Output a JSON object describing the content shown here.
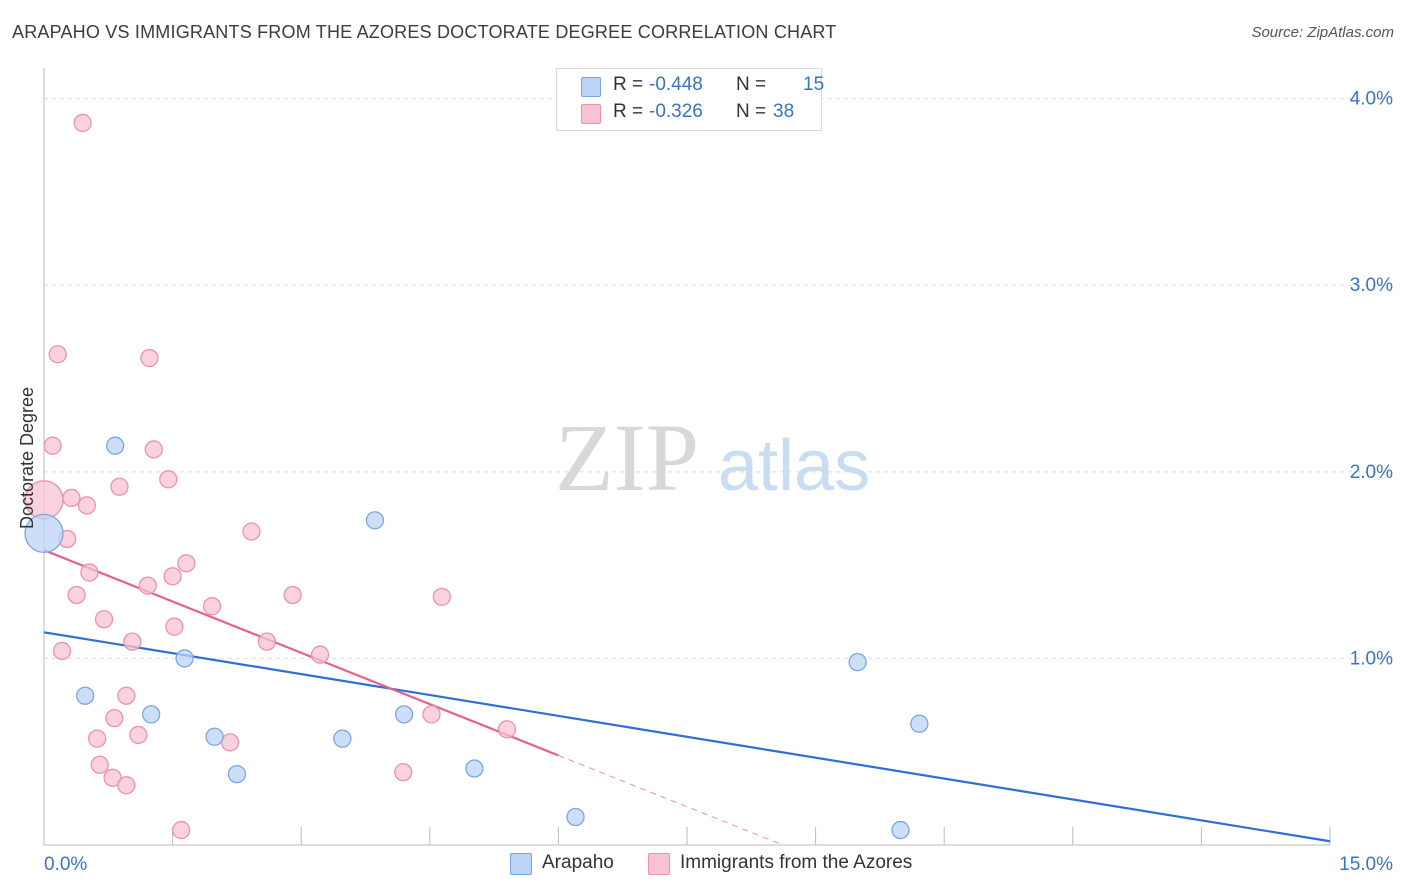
{
  "header": {
    "title": "ARAPAHO VS IMMIGRANTS FROM THE AZORES DOCTORATE DEGREE CORRELATION CHART",
    "source": "Source: ZipAtlas.com"
  },
  "legend_top": {
    "rows": [
      {
        "r_label": "R =",
        "r_value": "-0.448",
        "n_label": "N =",
        "n_value": "15"
      },
      {
        "r_label": "R =",
        "r_value": "-0.326",
        "n_label": "N =",
        "n_value": "38"
      }
    ]
  },
  "watermark": {
    "zip": "ZIP",
    "atlas": "atlas"
  },
  "colors": {
    "blue_fill": "#bcd4f5",
    "blue_stroke": "#7aa6e0",
    "blue_line": "#2f6fd3",
    "pink_fill": "#f7c3d3",
    "pink_stroke": "#ec92ae",
    "pink_line": "#e8608c",
    "axis_text": "#3a72c4",
    "grid": "#dddddd"
  },
  "chart_data": {
    "type": "scatter",
    "title": "ARAPAHO VS IMMIGRANTS FROM THE AZORES DOCTORATE DEGREE CORRELATION CHART",
    "xlabel": "",
    "ylabel": "Doctorate Degree",
    "xlim": [
      0,
      15
    ],
    "ylim": [
      0,
      4.1
    ],
    "x_tick_labels": {
      "min": "0.0%",
      "max": "15.0%"
    },
    "y_ticks": [
      1.0,
      2.0,
      3.0,
      4.0
    ],
    "y_tick_labels": [
      "1.0%",
      "2.0%",
      "3.0%",
      "4.0%"
    ],
    "grid": true,
    "series": [
      {
        "name": "Arapaho",
        "color": "#7aa6e0",
        "points": [
          {
            "x": 0.0,
            "y": 1.67,
            "size": "large"
          },
          {
            "x": 0.83,
            "y": 2.14
          },
          {
            "x": 0.48,
            "y": 0.8
          },
          {
            "x": 1.25,
            "y": 0.7
          },
          {
            "x": 1.64,
            "y": 1.0
          },
          {
            "x": 1.99,
            "y": 0.58
          },
          {
            "x": 2.25,
            "y": 0.38
          },
          {
            "x": 3.48,
            "y": 0.57
          },
          {
            "x": 3.86,
            "y": 1.74
          },
          {
            "x": 4.2,
            "y": 0.7
          },
          {
            "x": 5.02,
            "y": 0.41
          },
          {
            "x": 6.2,
            "y": 0.15
          },
          {
            "x": 9.49,
            "y": 0.98
          },
          {
            "x": 10.21,
            "y": 0.65
          },
          {
            "x": 9.99,
            "y": 0.08
          }
        ],
        "trend": {
          "x": [
            0,
            15
          ],
          "y": [
            1.14,
            0.02
          ]
        }
      },
      {
        "name": "Immigrants from the Azores",
        "color": "#ec92ae",
        "points": [
          {
            "x": 0.0,
            "y": 1.85,
            "size": "large"
          },
          {
            "x": 0.1,
            "y": 2.14
          },
          {
            "x": 0.16,
            "y": 2.63
          },
          {
            "x": 0.45,
            "y": 3.87
          },
          {
            "x": 0.32,
            "y": 1.86
          },
          {
            "x": 0.5,
            "y": 1.82
          },
          {
            "x": 0.27,
            "y": 1.64
          },
          {
            "x": 0.38,
            "y": 1.34
          },
          {
            "x": 0.53,
            "y": 1.46
          },
          {
            "x": 0.21,
            "y": 1.04
          },
          {
            "x": 0.7,
            "y": 1.21
          },
          {
            "x": 0.88,
            "y": 1.92
          },
          {
            "x": 1.03,
            "y": 1.09
          },
          {
            "x": 1.23,
            "y": 2.61
          },
          {
            "x": 1.45,
            "y": 1.96
          },
          {
            "x": 1.28,
            "y": 2.12
          },
          {
            "x": 1.21,
            "y": 1.39
          },
          {
            "x": 1.5,
            "y": 1.44
          },
          {
            "x": 1.52,
            "y": 1.17
          },
          {
            "x": 1.66,
            "y": 1.51
          },
          {
            "x": 1.96,
            "y": 1.28
          },
          {
            "x": 2.42,
            "y": 1.68
          },
          {
            "x": 2.6,
            "y": 1.09
          },
          {
            "x": 2.9,
            "y": 1.34
          },
          {
            "x": 3.22,
            "y": 1.02
          },
          {
            "x": 4.64,
            "y": 1.33
          },
          {
            "x": 0.96,
            "y": 0.8
          },
          {
            "x": 0.82,
            "y": 0.68
          },
          {
            "x": 0.62,
            "y": 0.57
          },
          {
            "x": 1.1,
            "y": 0.59
          },
          {
            "x": 0.65,
            "y": 0.43
          },
          {
            "x": 0.8,
            "y": 0.36
          },
          {
            "x": 0.96,
            "y": 0.32
          },
          {
            "x": 2.17,
            "y": 0.55
          },
          {
            "x": 4.52,
            "y": 0.7
          },
          {
            "x": 4.19,
            "y": 0.39
          },
          {
            "x": 5.4,
            "y": 0.62
          },
          {
            "x": 1.6,
            "y": 0.08
          }
        ],
        "trend": {
          "x": [
            0,
            6.0
          ],
          "y": [
            1.58,
            0.48
          ]
        },
        "trend_dashed": {
          "x": [
            6.0,
            9.0
          ],
          "y": [
            0.48,
            -0.07
          ]
        }
      }
    ]
  },
  "bottom_legend": {
    "items": [
      {
        "label": "Arapaho"
      },
      {
        "label": "Immigrants from the Azores"
      }
    ]
  }
}
